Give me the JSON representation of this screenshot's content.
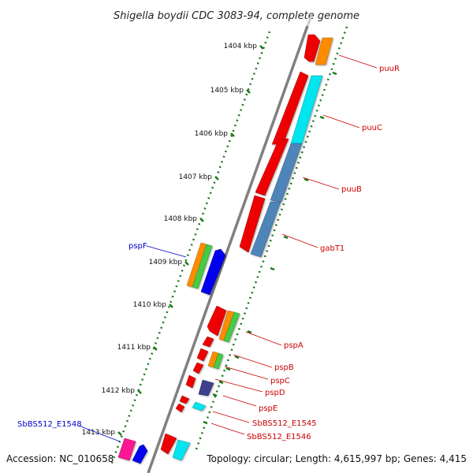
{
  "title": "Shigella boydii CDC 3083-94, complete genome",
  "footer": {
    "accession": "Accession: NC_010658",
    "topology": "Topology: circular; Length: 4,615,997 bp; Genes: 4,415"
  },
  "ticks": [
    "1404 kbp",
    "1405 kbp",
    "1406 kbp",
    "1407 kbp",
    "1408 kbp",
    "1409 kbp",
    "1410 kbp",
    "1411 kbp",
    "1412 kbp",
    "1413 kbp"
  ],
  "gene_labels": {
    "puuR": "puuR",
    "puuC": "puuC",
    "puuB": "puuB",
    "gabT1": "gabT1",
    "pspF": "pspF",
    "pspA": "pspA",
    "pspB": "pspB",
    "pspC": "pspC",
    "pspD": "pspD",
    "pspE": "pspE",
    "SbBS512_E1545": "SbBS512_E1545",
    "SbBS512_E1546": "SbBS512_E1546",
    "SbBS512_E1548": "SbBS512_E1548"
  },
  "colors": {
    "forward_label": "#0000cc",
    "reverse_label": "#cc0000",
    "backbone": "#808080",
    "ticks": "#1a7a1a",
    "cds_red": "#ee0000",
    "cds_orange": "#ff8c00",
    "cds_green": "#44cc44",
    "cds_cyan": "#00e5ee",
    "cds_steel": "#4f84b8",
    "cds_blue": "#0000ee",
    "cds_slate": "#3f3f8f",
    "cds_pink": "#ff1493"
  }
}
